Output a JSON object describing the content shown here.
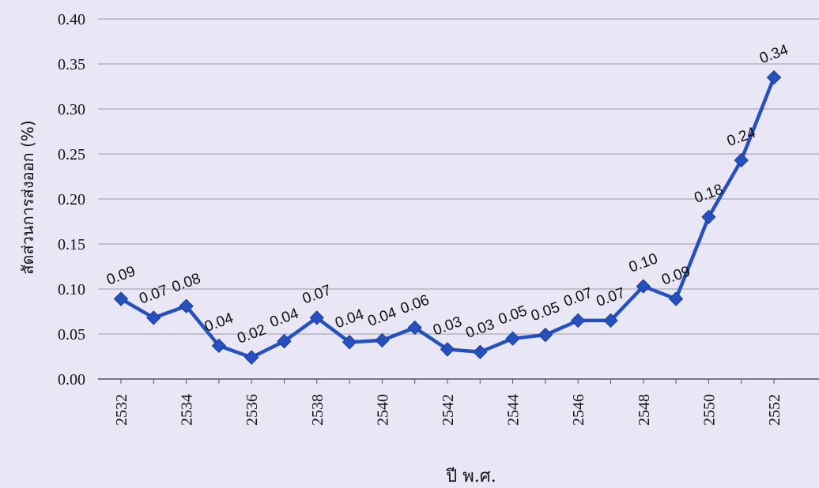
{
  "chart_data": {
    "type": "line",
    "title": "",
    "xlabel": "ปี พ.ศ.",
    "ylabel": "สัดส่วนการส่งออก (%)",
    "ylim": [
      0,
      0.4
    ],
    "yticks": [
      "0.00",
      "0.05",
      "0.10",
      "0.15",
      "0.20",
      "0.25",
      "0.30",
      "0.35",
      "0.40"
    ],
    "xticks": [
      "2532",
      "2534",
      "2536",
      "2538",
      "2540",
      "2542",
      "2544",
      "2546",
      "2548",
      "2550",
      "2552"
    ],
    "grid": true,
    "legend": "none",
    "colors": {
      "line": "#2450c0",
      "grid": "#9a9aa8",
      "background": "#e9e6f6"
    },
    "series": [
      {
        "x": [
          2532,
          2533,
          2534,
          2535,
          2536,
          2537,
          2538,
          2539,
          2540,
          2541,
          2542,
          2543,
          2544,
          2545,
          2546,
          2547,
          2548,
          2549,
          2550,
          2551,
          2552
        ],
        "values": [
          0.089,
          0.068,
          0.081,
          0.037,
          0.024,
          0.042,
          0.068,
          0.041,
          0.043,
          0.057,
          0.033,
          0.03,
          0.045,
          0.049,
          0.065,
          0.065,
          0.103,
          0.089,
          0.18,
          0.243,
          0.335
        ],
        "labels": [
          "0.09",
          "0.07",
          "0.08",
          "0.04",
          "0.02",
          "0.04",
          "0.07",
          "0.04",
          "0.04",
          "0.06",
          "0.03",
          "0.03",
          "0.05",
          "0.05",
          "0.07",
          "0.07",
          "0.10",
          "0.09",
          "0.18",
          "0.24",
          "0.34"
        ]
      }
    ]
  }
}
